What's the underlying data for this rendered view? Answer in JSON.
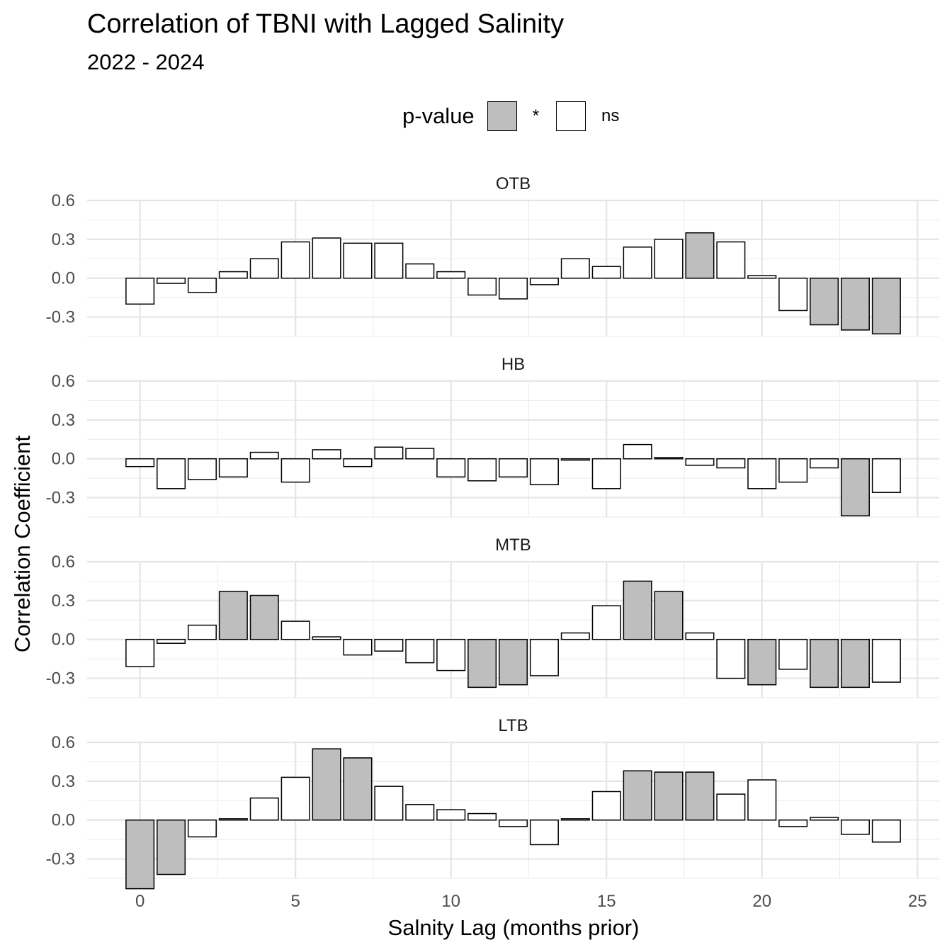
{
  "legend": {
    "title": "p-value",
    "items": [
      {
        "label": "*",
        "fill": "#bebebe"
      },
      {
        "label": "ns",
        "fill": "#ffffff"
      }
    ]
  },
  "chart_data": {
    "type": "bar",
    "title": "Correlation of TBNI with Lagged Salinity",
    "subtitle": "2022 - 2024",
    "xlabel": "Salnity Lag (months prior)",
    "ylabel": "Correlation Coefficient",
    "x": [
      0,
      1,
      2,
      3,
      4,
      5,
      6,
      7,
      8,
      9,
      10,
      11,
      12,
      13,
      14,
      15,
      16,
      17,
      18,
      19,
      20,
      21,
      22,
      23,
      24
    ],
    "xlim": [
      -1.7,
      25.7
    ],
    "xticks": [
      0,
      5,
      10,
      15,
      20,
      25
    ],
    "ylim": [
      -0.45,
      0.6
    ],
    "yticks": [
      -0.3,
      0.0,
      0.3,
      0.6
    ],
    "ytick_labels": [
      "-0.3",
      "0.0",
      "0.3",
      "0.6"
    ],
    "grid": true,
    "legend_position": "top",
    "significant_color": "#bebebe",
    "nonsignificant_color": "#ffffff",
    "panels": [
      {
        "name": "OTB",
        "values": [
          -0.2,
          -0.04,
          -0.11,
          0.05,
          0.15,
          0.28,
          0.31,
          0.27,
          0.27,
          0.11,
          0.05,
          -0.13,
          -0.16,
          -0.05,
          0.15,
          0.09,
          0.24,
          0.3,
          0.35,
          0.28,
          0.02,
          -0.25,
          -0.36,
          -0.4,
          -0.43
        ],
        "significance": [
          "ns",
          "ns",
          "ns",
          "ns",
          "ns",
          "ns",
          "ns",
          "ns",
          "ns",
          "ns",
          "ns",
          "ns",
          "ns",
          "ns",
          "ns",
          "ns",
          "ns",
          "ns",
          "*",
          "ns",
          "ns",
          "ns",
          "*",
          "*",
          "*"
        ]
      },
      {
        "name": "HB",
        "values": [
          -0.06,
          -0.23,
          -0.16,
          -0.14,
          0.05,
          -0.18,
          0.07,
          -0.06,
          0.09,
          0.08,
          -0.14,
          -0.17,
          -0.14,
          -0.2,
          -0.01,
          -0.23,
          0.11,
          0.01,
          -0.05,
          -0.07,
          -0.23,
          -0.18,
          -0.07,
          -0.44,
          -0.26
        ],
        "significance": [
          "ns",
          "ns",
          "ns",
          "ns",
          "ns",
          "ns",
          "ns",
          "ns",
          "ns",
          "ns",
          "ns",
          "ns",
          "ns",
          "ns",
          "ns",
          "ns",
          "ns",
          "ns",
          "ns",
          "ns",
          "ns",
          "ns",
          "ns",
          "*",
          "ns"
        ]
      },
      {
        "name": "MTB",
        "values": [
          -0.21,
          -0.03,
          0.11,
          0.37,
          0.34,
          0.14,
          0.02,
          -0.12,
          -0.09,
          -0.18,
          -0.24,
          -0.37,
          -0.35,
          -0.28,
          0.05,
          0.26,
          0.45,
          0.37,
          0.05,
          -0.3,
          -0.35,
          -0.23,
          -0.37,
          -0.37,
          -0.33
        ],
        "significance": [
          "ns",
          "ns",
          "ns",
          "*",
          "*",
          "ns",
          "ns",
          "ns",
          "ns",
          "ns",
          "ns",
          "*",
          "*",
          "ns",
          "ns",
          "ns",
          "*",
          "*",
          "ns",
          "ns",
          "*",
          "ns",
          "*",
          "*",
          "ns"
        ]
      },
      {
        "name": "LTB",
        "values": [
          -0.53,
          -0.42,
          -0.13,
          0.01,
          0.17,
          0.33,
          0.55,
          0.48,
          0.26,
          0.12,
          0.08,
          0.05,
          -0.05,
          -0.19,
          0.01,
          0.22,
          0.38,
          0.37,
          0.37,
          0.2,
          0.31,
          -0.05,
          0.02,
          -0.11,
          -0.17
        ],
        "significance": [
          "*",
          "*",
          "ns",
          "ns",
          "ns",
          "ns",
          "*",
          "*",
          "ns",
          "ns",
          "ns",
          "ns",
          "ns",
          "ns",
          "ns",
          "ns",
          "*",
          "*",
          "*",
          "ns",
          "ns",
          "ns",
          "ns",
          "ns",
          "ns"
        ]
      }
    ]
  }
}
